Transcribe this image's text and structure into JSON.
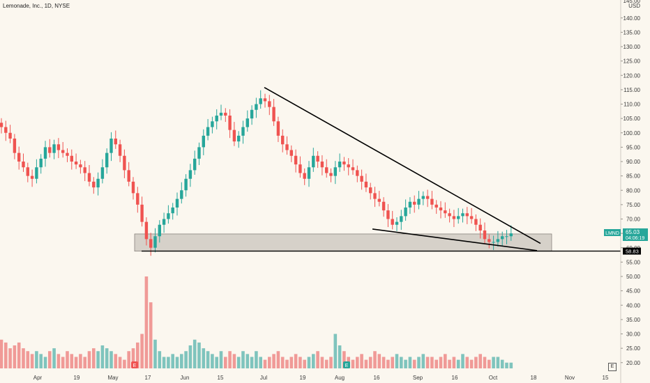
{
  "title": "Lemonade, Inc., 1D, NYSE",
  "currency": "USD",
  "corner_button": "E",
  "colors": {
    "up": "#26a69a",
    "down": "#ef5350",
    "vol_up": "#7fc4bd",
    "vol_down": "#f09a97",
    "trendline": "#000000",
    "zone_fill": "#c9c4bc",
    "background": "#fbf7ef"
  },
  "last_price": {
    "ticker": "LMND",
    "price": "65.03",
    "countdown": "04:06:19"
  },
  "support_label": "58.83",
  "event_markers": [
    "E",
    "E"
  ],
  "chart_data": {
    "type": "candlestick",
    "title": "Lemonade, Inc., 1D, NYSE",
    "x_ticks": [
      "Apr",
      "19",
      "May",
      "17",
      "Jun",
      "15",
      "Jul",
      "19",
      "Aug",
      "16",
      "Sep",
      "16",
      "Oct",
      "18",
      "Nov",
      "15"
    ],
    "y_ticks": [
      "145.00",
      "140.00",
      "135.00",
      "130.00",
      "125.00",
      "120.00",
      "115.00",
      "110.00",
      "105.00",
      "100.00",
      "95.00",
      "90.00",
      "85.00",
      "80.00",
      "75.00",
      "70.00",
      "65.00",
      "60.00",
      "55.00",
      "50.00",
      "45.00",
      "40.00",
      "35.00",
      "30.00",
      "25.00",
      "20.00"
    ],
    "ylim": [
      18,
      146
    ],
    "support_level": 58.83,
    "support_zone": [
      58.8,
      64.8
    ],
    "trendlines": [
      {
        "name": "upper",
        "from": [
          0.0,
          115.8
        ],
        "to": [
          1.0,
          61.5
        ]
      },
      {
        "name": "lower",
        "from": [
          0.0,
          66.5
        ],
        "to": [
          1.0,
          59.0
        ]
      }
    ],
    "closes": [
      102,
      100,
      98,
      93,
      90,
      88,
      85,
      84,
      88,
      91,
      95,
      93,
      96,
      94,
      93,
      92,
      90,
      89,
      88,
      86,
      83,
      81,
      84,
      88,
      93,
      98,
      96,
      92,
      87,
      83,
      79,
      75,
      69,
      63,
      60,
      64,
      68,
      70,
      72,
      74,
      77,
      80,
      84,
      87,
      91,
      95,
      99,
      102,
      104,
      106,
      107,
      106,
      101,
      97,
      99,
      102,
      105,
      108,
      110,
      112,
      111,
      109,
      104,
      99,
      96,
      94,
      92,
      89,
      86,
      84,
      88,
      92,
      90,
      88,
      86,
      85,
      88,
      90,
      89,
      88,
      87,
      85,
      83,
      81,
      79,
      77,
      76,
      73,
      70,
      68,
      69,
      71,
      74,
      76,
      75,
      77,
      78,
      77,
      75,
      74,
      73,
      72,
      71,
      70,
      71,
      72,
      71,
      70,
      68,
      66,
      63,
      62,
      62,
      63,
      64,
      64,
      65
    ],
    "volumes_M": [
      28,
      27,
      25,
      26,
      27,
      25,
      24,
      23,
      24,
      23,
      22,
      24,
      25,
      23,
      22,
      24,
      23,
      22,
      23,
      22,
      24,
      25,
      24,
      26,
      25,
      24,
      23,
      22,
      21,
      24,
      25,
      27,
      30,
      50,
      41,
      28,
      24,
      22,
      22,
      23,
      22,
      23,
      24,
      26,
      28,
      27,
      25,
      24,
      23,
      22,
      24,
      22,
      24,
      23,
      22,
      24,
      23,
      22,
      24,
      22,
      21,
      22,
      23,
      24,
      22,
      21,
      22,
      23,
      22,
      21,
      22,
      23,
      24,
      22,
      21,
      22,
      30,
      26,
      24,
      22,
      21,
      22,
      23,
      21,
      22,
      24,
      23,
      22,
      21,
      22,
      23,
      22,
      21,
      22,
      21,
      22,
      23,
      22,
      22,
      21,
      22,
      23,
      21,
      22,
      21,
      23,
      22,
      21,
      22,
      23,
      22,
      21,
      22,
      22,
      21,
      20,
      20
    ]
  }
}
